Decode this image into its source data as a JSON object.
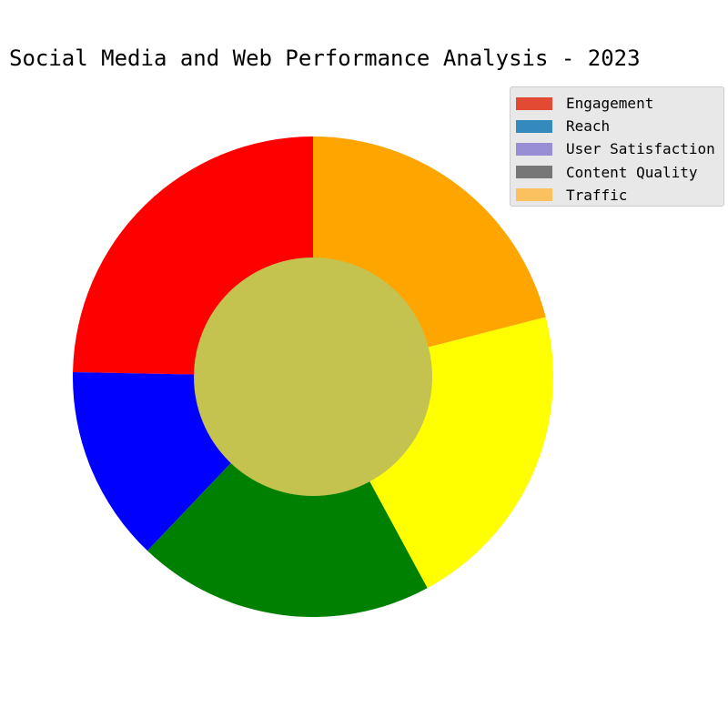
{
  "chart_data": {
    "type": "pie",
    "title": "Social Media and Web Performance Analysis - 2023",
    "slices": [
      {
        "value": 24.7,
        "color": "#ff0000"
      },
      {
        "value": 13.2,
        "color": "#0000ff"
      },
      {
        "value": 20.0,
        "color": "#008000"
      },
      {
        "value": 21.1,
        "color": "#ffff00"
      },
      {
        "value": 21.0,
        "color": "#ffa500"
      }
    ],
    "center_color": "#c5c350",
    "start_angle_deg": 90,
    "direction": "counterclockwise",
    "legend": {
      "placement": "top-right",
      "entries": [
        {
          "label": "Engagement",
          "color": "#e24a33"
        },
        {
          "label": "Reach",
          "color": "#348abd"
        },
        {
          "label": "User Satisfaction",
          "color": "#988ed5"
        },
        {
          "label": "Content Quality",
          "color": "#777777"
        },
        {
          "label": "Traffic",
          "color": "#fbc15e"
        }
      ]
    }
  }
}
